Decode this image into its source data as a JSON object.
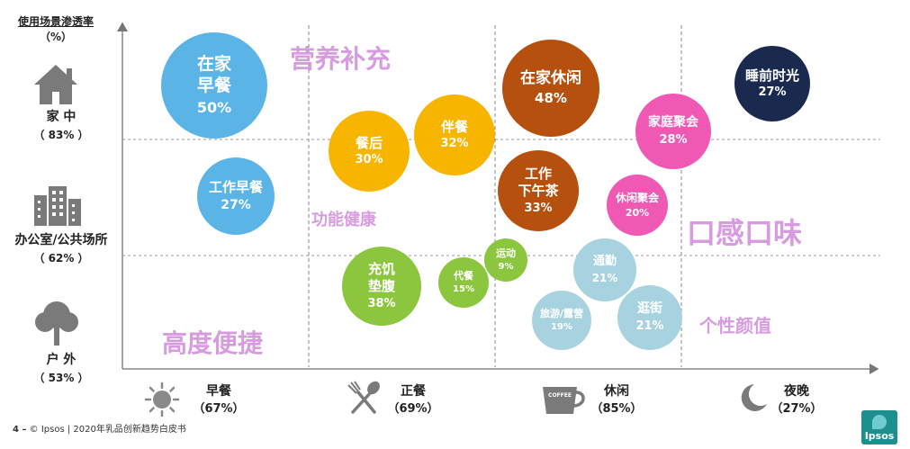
{
  "y_axis_title": {
    "line1": "使用场景渗透率",
    "line2": "（%）"
  },
  "rows": [
    {
      "label": "家 中",
      "pct": "（ 83% ）",
      "icon": "house-icon"
    },
    {
      "label": "办公室/公共场所",
      "pct": "（ 62% ）",
      "icon": "office-building-icon"
    },
    {
      "label": "户 外",
      "pct": "（ 53% ）",
      "icon": "tree-icon"
    }
  ],
  "columns": [
    {
      "label": "早餐",
      "pct": "（67%）",
      "icon": "sun-icon"
    },
    {
      "label": "正餐",
      "pct": "（69%）",
      "icon": "fork-spoon-icon"
    },
    {
      "label": "休闲",
      "pct": "（85%）",
      "icon": "coffee-cup-icon",
      "cup_text": "COFFEE"
    },
    {
      "label": "夜晚",
      "pct": "（27%）",
      "icon": "moon-icon"
    }
  ],
  "themes": [
    {
      "text": "营养补充",
      "color": "#d79be0"
    },
    {
      "text": "功能健康",
      "color": "#d79be0"
    },
    {
      "text": "口感口味",
      "color": "#d79be0"
    },
    {
      "text": "高度便捷",
      "color": "#d79be0"
    },
    {
      "text": "个性颜值",
      "color": "#d79be0"
    }
  ],
  "chart_data": {
    "type": "scatter",
    "x_categories": [
      "早餐",
      "正餐",
      "休闲",
      "夜晚"
    ],
    "y_categories": [
      "家 中",
      "办公室/公共场所",
      "户 外"
    ],
    "points": [
      {
        "name": "在家\n早餐",
        "value": 50,
        "column": "早餐",
        "row": "家 中",
        "color": "#5ab4e5"
      },
      {
        "name": "工作早餐",
        "value": 27,
        "column": "早餐",
        "row": "办公室/公共场所",
        "color": "#5ab4e5"
      },
      {
        "name": "餐后",
        "value": 30,
        "column": "正餐",
        "row": "家 中",
        "color": "#f7b500"
      },
      {
        "name": "伴餐",
        "value": 32,
        "column": "正餐",
        "row": "家 中",
        "color": "#f7b500"
      },
      {
        "name": "充饥\n垫腹",
        "value": 38,
        "column": "正餐",
        "row": "户 外",
        "color": "#8cc63f"
      },
      {
        "name": "代餐",
        "value": 15,
        "column": "正餐",
        "row": "户 外",
        "color": "#8cc63f"
      },
      {
        "name": "运动",
        "value": 9,
        "column": "正餐",
        "row": "户 外",
        "color": "#8cc63f"
      },
      {
        "name": "在家休闲",
        "value": 48,
        "column": "休闲",
        "row": "家 中",
        "color": "#b5500f"
      },
      {
        "name": "工作\n下午茶",
        "value": 33,
        "column": "休闲",
        "row": "办公室/公共场所",
        "color": "#b5500f"
      },
      {
        "name": "家庭聚会",
        "value": 28,
        "column": "休闲",
        "row": "家 中",
        "color": "#ef59b4"
      },
      {
        "name": "休闲聚会",
        "value": 20,
        "column": "休闲",
        "row": "办公室/公共场所",
        "color": "#ef59b4"
      },
      {
        "name": "通勤",
        "value": 21,
        "column": "休闲",
        "row": "户 外",
        "color": "#a6d3df"
      },
      {
        "name": "旅游/露营",
        "value": 19,
        "column": "休闲",
        "row": "户 外",
        "color": "#a6d3df"
      },
      {
        "name": "逛街",
        "value": 21,
        "column": "休闲",
        "row": "户 外",
        "color": "#a6d3df"
      },
      {
        "name": "睡前时光",
        "value": 27,
        "column": "夜晚",
        "row": "家 中",
        "color": "#1a2a4f"
      }
    ]
  },
  "footer": {
    "page": "4 –",
    "source": "© Ipsos | 2020年乳品创新趋势白皮书"
  },
  "logo": {
    "text": "Ipsos",
    "color": "#1e8f8f"
  }
}
